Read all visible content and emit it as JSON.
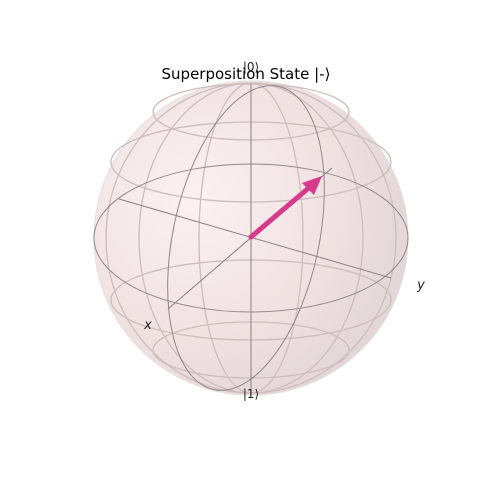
{
  "figure": {
    "title": "Superposition State |-⟩",
    "labels": {
      "x": "x",
      "y": "y",
      "ket0": "|0⟩",
      "ket1": "|1⟩"
    },
    "state_vector": {
      "color": "#d63a8a"
    },
    "sphere_fill": "#f3e3e3",
    "wire_color": "#8f8888"
  }
}
